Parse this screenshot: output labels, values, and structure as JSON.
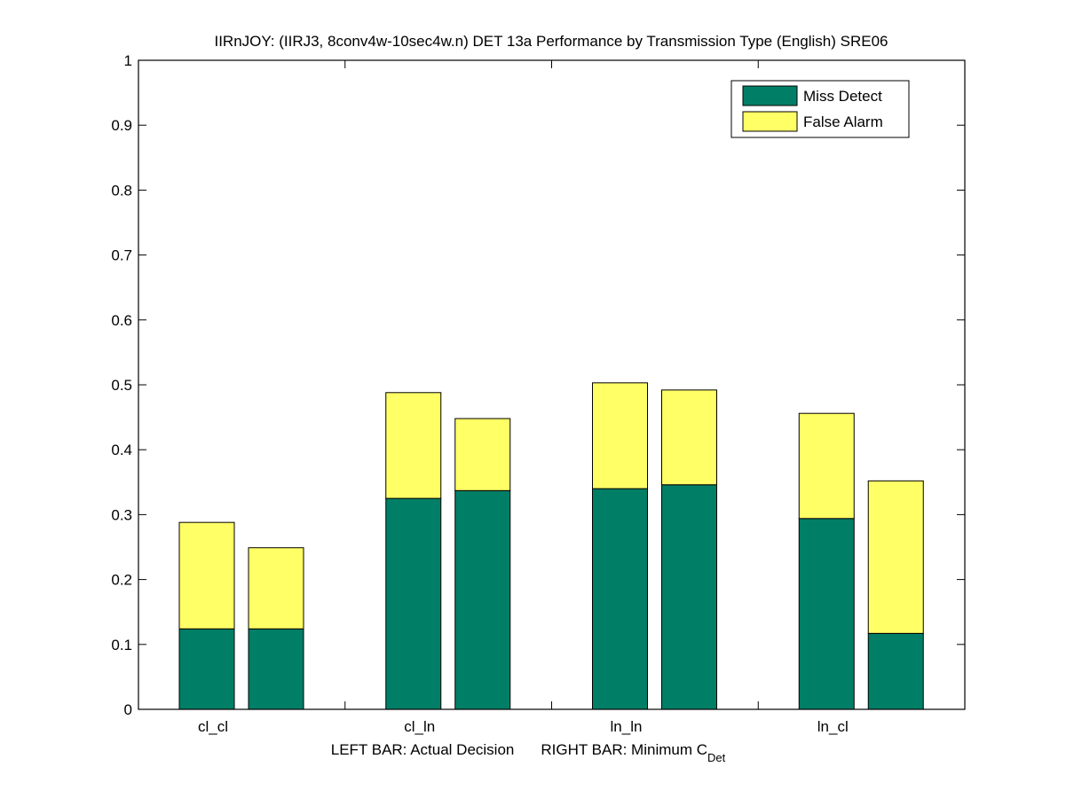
{
  "chart_data": {
    "type": "bar",
    "stacked": true,
    "title": "IIRnJOY: (IIRJ3, 8conv4w-10sec4w.n) DET 13a Performance by Transmission Type (English) SRE06",
    "xlabel_parts": {
      "left": "LEFT BAR: Actual Decision",
      "right": "RIGHT BAR: Minimum C",
      "subscript": "Det"
    },
    "ylabel": "",
    "ylim": [
      0,
      1
    ],
    "yticks": [
      "0",
      "0.1",
      "0.2",
      "0.3",
      "0.4",
      "0.5",
      "0.6",
      "0.7",
      "0.8",
      "0.9",
      "1"
    ],
    "categories": [
      "cl_cl",
      "cl_ln",
      "ln_ln",
      "ln_cl"
    ],
    "bars_per_category": [
      "Actual Decision",
      "Minimum C_Det"
    ],
    "series": [
      {
        "name": "Miss Detect",
        "color": "#007f66",
        "values": [
          [
            0.124,
            0.124
          ],
          [
            0.325,
            0.337
          ],
          [
            0.34,
            0.346
          ],
          [
            0.294,
            0.117
          ]
        ]
      },
      {
        "name": "False Alarm",
        "color": "#ffff66",
        "values": [
          [
            0.164,
            0.125
          ],
          [
            0.163,
            0.111
          ],
          [
            0.163,
            0.146
          ],
          [
            0.162,
            0.235
          ]
        ]
      }
    ],
    "legend": {
      "position": "top-right",
      "entries": [
        "Miss Detect",
        "False Alarm"
      ]
    },
    "grid": false
  }
}
